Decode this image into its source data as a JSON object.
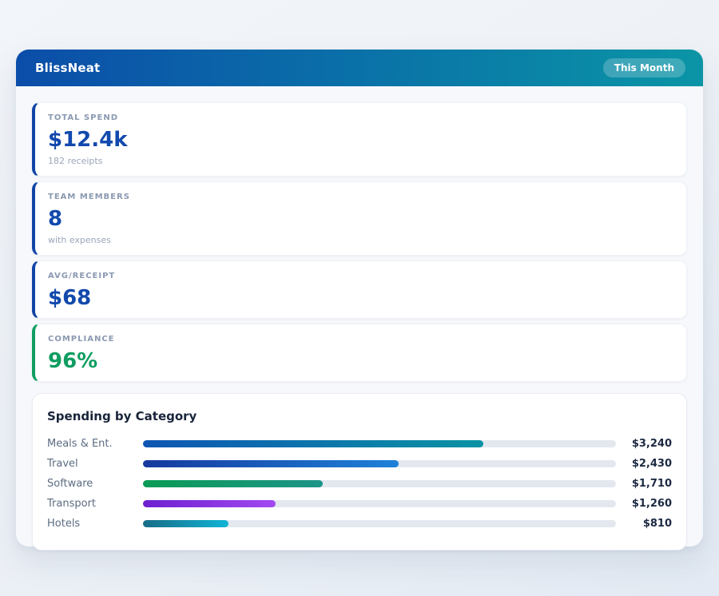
{
  "header": {
    "app_name": "BlissNeat",
    "period_badge": "This Month",
    "gradient": [
      "#0b4da9",
      "#0a95a6"
    ]
  },
  "stats": [
    {
      "slug": "total-spend",
      "label": "TOTAL SPEND",
      "value": "$12.4k",
      "sub": "182 receipts",
      "accent": "#1144a6",
      "value_color": "#1249ad"
    },
    {
      "slug": "team-members",
      "label": "TEAM MEMBERS",
      "value": "8",
      "sub": "with expenses",
      "accent": "#1144a6",
      "value_color": "#1249ad"
    },
    {
      "slug": "avg-receipt",
      "label": "AVG/RECEIPT",
      "value": "$68",
      "sub": "",
      "accent": "#1144a6",
      "value_color": "#1249ad"
    },
    {
      "slug": "compliance",
      "label": "COMPLIANCE",
      "value": "96%",
      "sub": "",
      "accent": "#0f9d61",
      "value_color": "#0f9d61"
    }
  ],
  "spending": {
    "title": "Spending by Category",
    "track_color": "#e3e8ef",
    "rows": [
      {
        "slug": "meals",
        "label": "Meals & Ent.",
        "value_label": "$3,240",
        "bar_percent": 72,
        "gradient": [
          "#0e56b3",
          "#0a93a3"
        ]
      },
      {
        "slug": "travel",
        "label": "Travel",
        "value_label": "$2,430",
        "bar_percent": 54,
        "gradient": [
          "#16399e",
          "#1e82d8"
        ]
      },
      {
        "slug": "software",
        "label": "Software",
        "value_label": "$1,710",
        "bar_percent": 38,
        "gradient": [
          "#0a9b55",
          "#1d9488"
        ]
      },
      {
        "slug": "transport",
        "label": "Transport",
        "value_label": "$1,260",
        "bar_percent": 28,
        "gradient": [
          "#6d1fd0",
          "#a24af0"
        ]
      },
      {
        "slug": "hotels",
        "label": "Hotels",
        "value_label": "$810",
        "bar_percent": 18,
        "gradient": [
          "#176c85",
          "#10b4d6"
        ]
      }
    ]
  },
  "chart_data": {
    "type": "bar",
    "title": "Spending by Category",
    "categories": [
      "Meals & Ent.",
      "Travel",
      "Software",
      "Transport",
      "Hotels"
    ],
    "values": [
      3240,
      2430,
      1710,
      1260,
      810
    ],
    "xlabel": "",
    "ylabel": "",
    "xlim": [
      0,
      4500
    ],
    "orientation": "horizontal",
    "grid": false,
    "legend": "none"
  }
}
